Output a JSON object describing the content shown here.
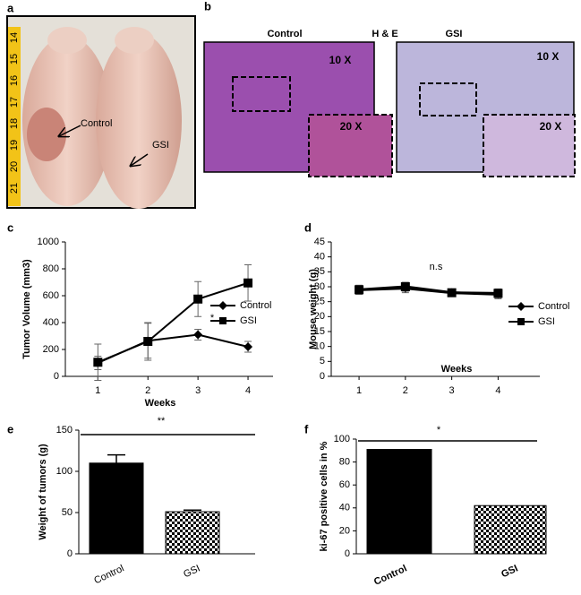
{
  "photos": {
    "a": {
      "panel_label": "a",
      "labels": [
        "Control",
        "GSI"
      ],
      "ruler": [
        "14",
        "15",
        "16",
        "17",
        "18",
        "19",
        "20",
        "21"
      ]
    },
    "b": {
      "panel_label": "b",
      "titles": [
        "Control",
        "H & E",
        "GSI"
      ],
      "magnifications": [
        "10 X",
        "20 X",
        "10 X",
        "20 X"
      ]
    }
  },
  "chart_data": [
    {
      "type": "line",
      "panel_label": "c",
      "y_label": "Tumor Volume (mm3)",
      "x_label": "Weeks",
      "x": [
        1,
        2,
        3,
        4
      ],
      "xlim": [
        0.35,
        4.5
      ],
      "xticks": [
        1,
        2,
        3,
        4
      ],
      "ylim": [
        0,
        1000
      ],
      "yticks": [
        0,
        200,
        400,
        600,
        800,
        1000
      ],
      "annotation": "*",
      "legend": "right",
      "series": [
        {
          "name": "Control",
          "color": "#000000",
          "marker": "diamond",
          "values": [
            100,
            265,
            310,
            220
          ],
          "errors": [
            50,
            130,
            40,
            40
          ]
        },
        {
          "name": "GSI",
          "color": "#000000",
          "marker": "square",
          "values": [
            105,
            260,
            575,
            695
          ],
          "errors": [
            135,
            140,
            130,
            135
          ]
        }
      ]
    },
    {
      "type": "line",
      "panel_label": "d",
      "y_label": "Mouse weight (g)",
      "x_label": "Weeks",
      "x": [
        1,
        2,
        3,
        4
      ],
      "xlim": [
        0.4,
        4.9
      ],
      "xticks": [
        1,
        2,
        3,
        4
      ],
      "ylim": [
        0,
        45
      ],
      "yticks": [
        0,
        5,
        10,
        15,
        20,
        25,
        30,
        35,
        40,
        45
      ],
      "annotation": "n.s",
      "legend": "right",
      "series": [
        {
          "name": "Control",
          "color": "#000000",
          "marker": "diamond",
          "values": [
            29,
            29.5,
            28,
            27.5
          ],
          "errors": [
            1.5,
            1.5,
            1,
            1.5
          ]
        },
        {
          "name": "GSI",
          "color": "#000000",
          "marker": "square",
          "values": [
            29,
            30,
            28,
            27.8
          ],
          "errors": [
            1.5,
            1.5,
            1,
            1.5
          ]
        }
      ]
    },
    {
      "type": "bar",
      "panel_label": "e",
      "y_label": "Weight of tumors (g)",
      "categories": [
        "Control",
        "GSI"
      ],
      "values": [
        110,
        51
      ],
      "errors": [
        10,
        2
      ],
      "color": "#000000",
      "fills": [
        "solid",
        "checkered"
      ],
      "ylim": [
        0,
        150
      ],
      "yticks": [
        0,
        50,
        100,
        150
      ],
      "annotation": "**"
    },
    {
      "type": "bar",
      "panel_label": "f",
      "y_label": "ki-67 positive cells in %",
      "categories": [
        "Control",
        "GSI"
      ],
      "values": [
        91,
        42
      ],
      "color": "#000000",
      "fills": [
        "solid",
        "checkered"
      ],
      "ylim": [
        0,
        100
      ],
      "yticks": [
        0,
        20,
        40,
        60,
        80,
        100
      ],
      "annotation": "*",
      "bold_labels": true
    }
  ]
}
